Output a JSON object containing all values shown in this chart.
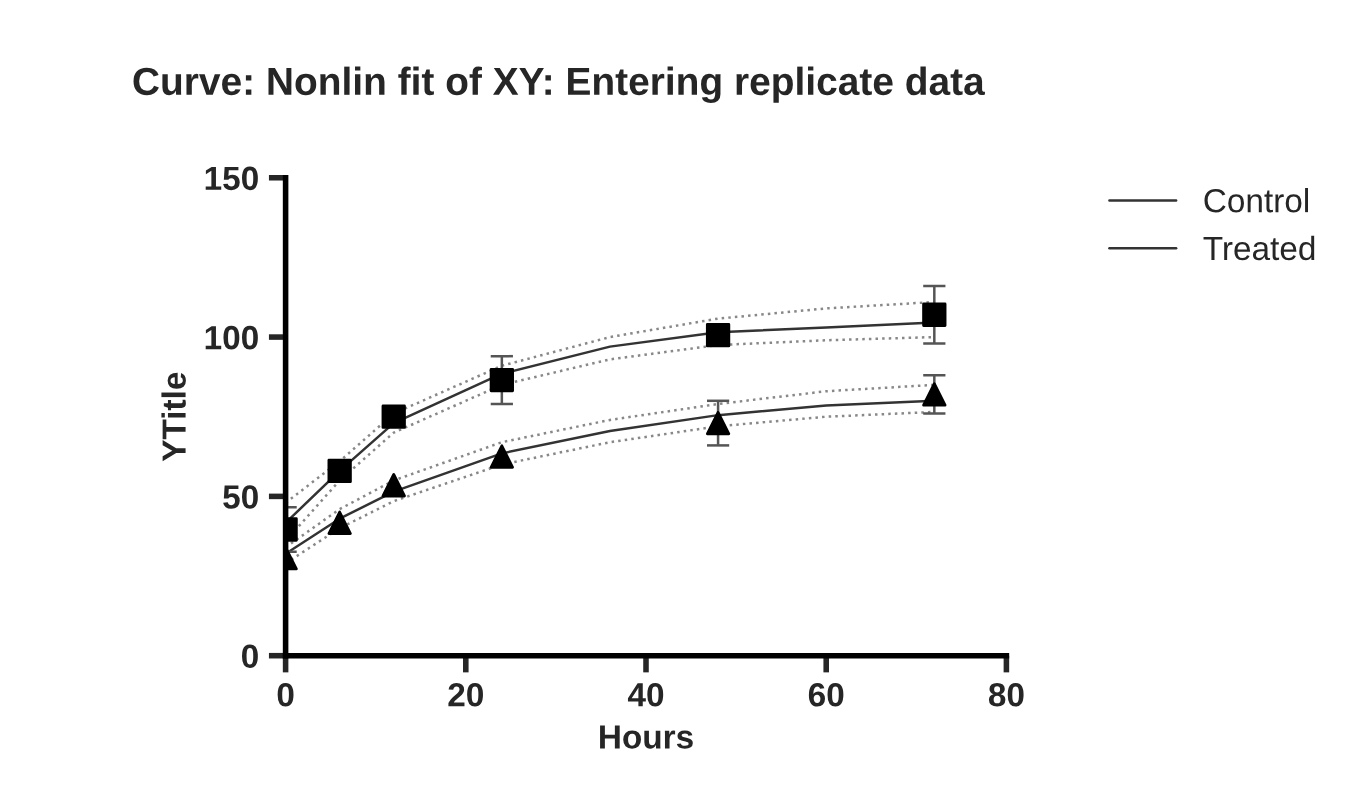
{
  "chart_data": {
    "type": "scatter",
    "title": "Curve: Nonlin fit of XY: Entering replicate data",
    "xlabel": "Hours",
    "ylabel": "YTitle",
    "xlim": [
      0,
      80
    ],
    "xticks": [
      0,
      20,
      40,
      60,
      80
    ],
    "ylim": [
      0,
      150
    ],
    "yticks": [
      0,
      50,
      100,
      150
    ],
    "grid": false,
    "legend": "top right",
    "series": [
      {
        "type": "line",
        "name": "Control",
        "color": "#333333",
        "marker": "none",
        "line_style": "solid",
        "x": [
          0,
          6,
          12,
          24,
          36,
          48,
          60,
          72
        ],
        "values": [
          41.7,
          58,
          73,
          88.5,
          97,
          101.5,
          103,
          104.6
        ]
      },
      {
        "type": "line",
        "name": "Treated",
        "color": "#333333",
        "marker": "none",
        "line_style": "solid",
        "x": [
          0,
          6,
          12,
          24,
          36,
          48,
          60,
          72
        ],
        "values": [
          32,
          43,
          51.5,
          63.5,
          70.5,
          75.5,
          78.5,
          80
        ]
      },
      {
        "type": "line",
        "color": "#888888",
        "marker": "none",
        "line_style": "dotted",
        "x": [
          0,
          6,
          12,
          24,
          36,
          48,
          60,
          72
        ],
        "values": [
          48,
          61,
          76,
          91,
          100,
          105.8,
          109,
          111
        ]
      },
      {
        "type": "line",
        "color": "#888888",
        "marker": "none",
        "line_style": "dotted",
        "x": [
          0,
          6,
          12,
          24,
          36,
          48,
          60,
          72
        ],
        "values": [
          36,
          55,
          70,
          85,
          93,
          97.5,
          99,
          100
        ]
      },
      {
        "type": "line",
        "color": "#888888",
        "marker": "none",
        "line_style": "dotted",
        "x": [
          0,
          6,
          12,
          24,
          36,
          48,
          60,
          72
        ],
        "values": [
          34,
          46,
          55,
          67,
          74,
          79,
          83,
          85
        ]
      },
      {
        "type": "line",
        "color": "#888888",
        "marker": "none",
        "line_style": "dotted",
        "x": [
          0,
          6,
          12,
          24,
          36,
          48,
          60,
          72
        ],
        "values": [
          29,
          40,
          48.5,
          60,
          67,
          72,
          75,
          76.5
        ]
      },
      {
        "color": "#000000",
        "marker": "square",
        "x": [
          0,
          6,
          12,
          24,
          48,
          72
        ],
        "values": [
          39.6,
          58,
          75,
          86.5,
          100.6,
          107
        ],
        "errors": [
          7,
          null,
          null,
          7.5,
          null,
          9
        ]
      },
      {
        "color": "#000000",
        "marker": "triangle",
        "x": [
          0,
          6,
          12,
          24,
          48,
          72
        ],
        "values": [
          30.6,
          41.7,
          53.5,
          62.5,
          73,
          82
        ],
        "errors": [
          null,
          null,
          null,
          null,
          7,
          6
        ]
      }
    ]
  }
}
